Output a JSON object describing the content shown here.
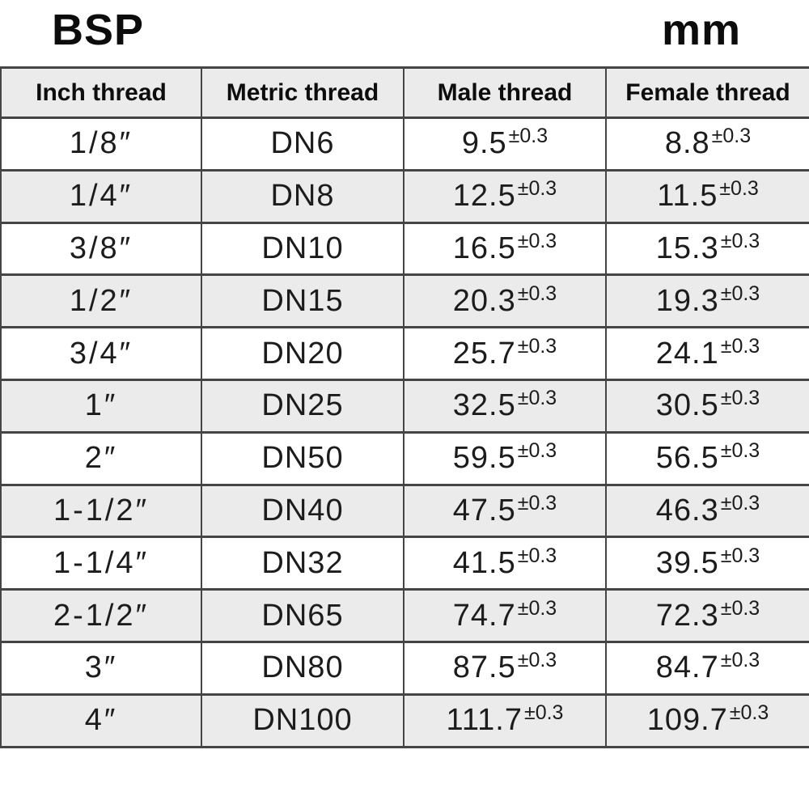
{
  "page": {
    "title_left": "BSP",
    "title_right": "mm"
  },
  "table": {
    "columns": [
      "Inch thread",
      "Metric thread",
      "Male thread",
      "Female thread"
    ],
    "rows": [
      {
        "inch": "1/8″",
        "metric": "DN6",
        "male": "9.5",
        "male_tol": "±0.3",
        "female": "8.8",
        "female_tol": "±0.3"
      },
      {
        "inch": "1/4″",
        "metric": "DN8",
        "male": "12.5",
        "male_tol": "±0.3",
        "female": "11.5",
        "female_tol": "±0.3"
      },
      {
        "inch": "3/8″",
        "metric": "DN10",
        "male": "16.5",
        "male_tol": "±0.3",
        "female": "15.3",
        "female_tol": "±0.3"
      },
      {
        "inch": "1/2″",
        "metric": "DN15",
        "male": "20.3",
        "male_tol": "±0.3",
        "female": "19.3",
        "female_tol": "±0.3"
      },
      {
        "inch": "3/4″",
        "metric": "DN20",
        "male": "25.7",
        "male_tol": "±0.3",
        "female": "24.1",
        "female_tol": "±0.3"
      },
      {
        "inch": "1″",
        "metric": "DN25",
        "male": "32.5",
        "male_tol": "±0.3",
        "female": "30.5",
        "female_tol": "±0.3"
      },
      {
        "inch": "2″",
        "metric": "DN50",
        "male": "59.5",
        "male_tol": "±0.3",
        "female": "56.5",
        "female_tol": "±0.3"
      },
      {
        "inch": "1-1/2″",
        "metric": "DN40",
        "male": "47.5",
        "male_tol": "±0.3",
        "female": "46.3",
        "female_tol": "±0.3"
      },
      {
        "inch": "1-1/4″",
        "metric": "DN32",
        "male": "41.5",
        "male_tol": "±0.3",
        "female": "39.5",
        "female_tol": "±0.3"
      },
      {
        "inch": "2-1/2″",
        "metric": "DN65",
        "male": "74.7",
        "male_tol": "±0.3",
        "female": "72.3",
        "female_tol": "±0.3"
      },
      {
        "inch": "3″",
        "metric": "DN80",
        "male": "87.5",
        "male_tol": "±0.3",
        "female": "84.7",
        "female_tol": "±0.3"
      },
      {
        "inch": "4″",
        "metric": "DN100",
        "male": "111.7",
        "male_tol": "±0.3",
        "female": "109.7",
        "female_tol": "±0.3"
      }
    ]
  },
  "colors": {
    "header_bg": "#ebebeb",
    "row_alt_bg": "#ebebeb",
    "border": "#454545",
    "text": "#111111"
  }
}
